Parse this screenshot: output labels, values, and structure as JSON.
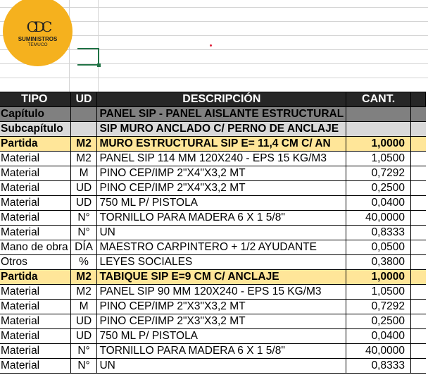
{
  "logo": {
    "mark": "CDC",
    "name": "SUMINISTROS",
    "city": "TEMUCO",
    "color": "#f5b11e"
  },
  "table": {
    "headers": [
      "TIPO",
      "UD",
      "DESCRIPCIÓN",
      "CANT."
    ],
    "rows": [
      {
        "type": "cap",
        "tipo": "Capítulo",
        "ud": "",
        "desc": "PANEL SIP - PANEL AISLANTE ESTRUCTURAL",
        "cant": ""
      },
      {
        "type": "sub",
        "tipo": "Subcapítulo",
        "ud": "",
        "desc": "SIP MURO ANCLADO C/ PERNO DE ANCLAJE",
        "cant": ""
      },
      {
        "type": "par",
        "tipo": "Partida",
        "ud": "M2",
        "desc": "MURO ESTRUCTURAL SIP E= 11,4 CM C/ AN",
        "cant": "1,0000"
      },
      {
        "type": "mat",
        "tipo": "Material",
        "ud": "M2",
        "desc": "PANEL SIP 114 MM 120X240 - EPS 15 KG/M3",
        "cant": "1,0500"
      },
      {
        "type": "mat",
        "tipo": "Material",
        "ud": "M",
        "desc": "PINO CEP/IMP 2\"X4\"X3,2 MT",
        "cant": "0,7292"
      },
      {
        "type": "mat",
        "tipo": "Material",
        "ud": "UD",
        "desc": "PINO CEP/IMP 2\"X4\"X3,2 MT",
        "cant": "0,2500"
      },
      {
        "type": "mat",
        "tipo": "Material",
        "ud": "UD",
        "desc": "750 ML P/ PISTOLA",
        "cant": "0,0400"
      },
      {
        "type": "mat",
        "tipo": "Material",
        "ud": "N°",
        "desc": "TORNILLO PARA MADERA 6 X 1 5/8\"",
        "cant": "40,0000"
      },
      {
        "type": "mat",
        "tipo": "Material",
        "ud": "N°",
        "desc": "UN",
        "cant": "0,8333"
      },
      {
        "type": "mat",
        "tipo": "Mano de obra",
        "ud": "DÍA",
        "desc": "MAESTRO CARPINTERO + 1/2 AYUDANTE",
        "cant": "0,0500"
      },
      {
        "type": "mat",
        "tipo": "Otros",
        "ud": "%",
        "desc": "LEYES SOCIALES",
        "cant": "0,3800"
      },
      {
        "type": "par",
        "tipo": "Partida",
        "ud": "M2",
        "desc": "TABIQUE SIP E=9 CM C/ ANCLAJE",
        "cant": "1,0000"
      },
      {
        "type": "mat",
        "tipo": "Material",
        "ud": "M2",
        "desc": "PANEL SIP 90 MM 120X240 - EPS 15 KG/M3",
        "cant": "1,0500"
      },
      {
        "type": "mat",
        "tipo": "Material",
        "ud": "M",
        "desc": "PINO CEP/IMP 2\"X3\"X3,2 MT",
        "cant": "0,7292"
      },
      {
        "type": "mat",
        "tipo": "Material",
        "ud": "UD",
        "desc": "PINO CEP/IMP 2\"X3\"X3,2 MT",
        "cant": "0,2500"
      },
      {
        "type": "mat",
        "tipo": "Material",
        "ud": "UD",
        "desc": "750 ML P/ PISTOLA",
        "cant": "0,0400"
      },
      {
        "type": "mat",
        "tipo": "Material",
        "ud": "N°",
        "desc": "TORNILLO PARA MADERA 6 X 1 5/8\"",
        "cant": "40,0000"
      },
      {
        "type": "mat",
        "tipo": "Material",
        "ud": "N°",
        "desc": "UN",
        "cant": "0,8333"
      }
    ]
  }
}
